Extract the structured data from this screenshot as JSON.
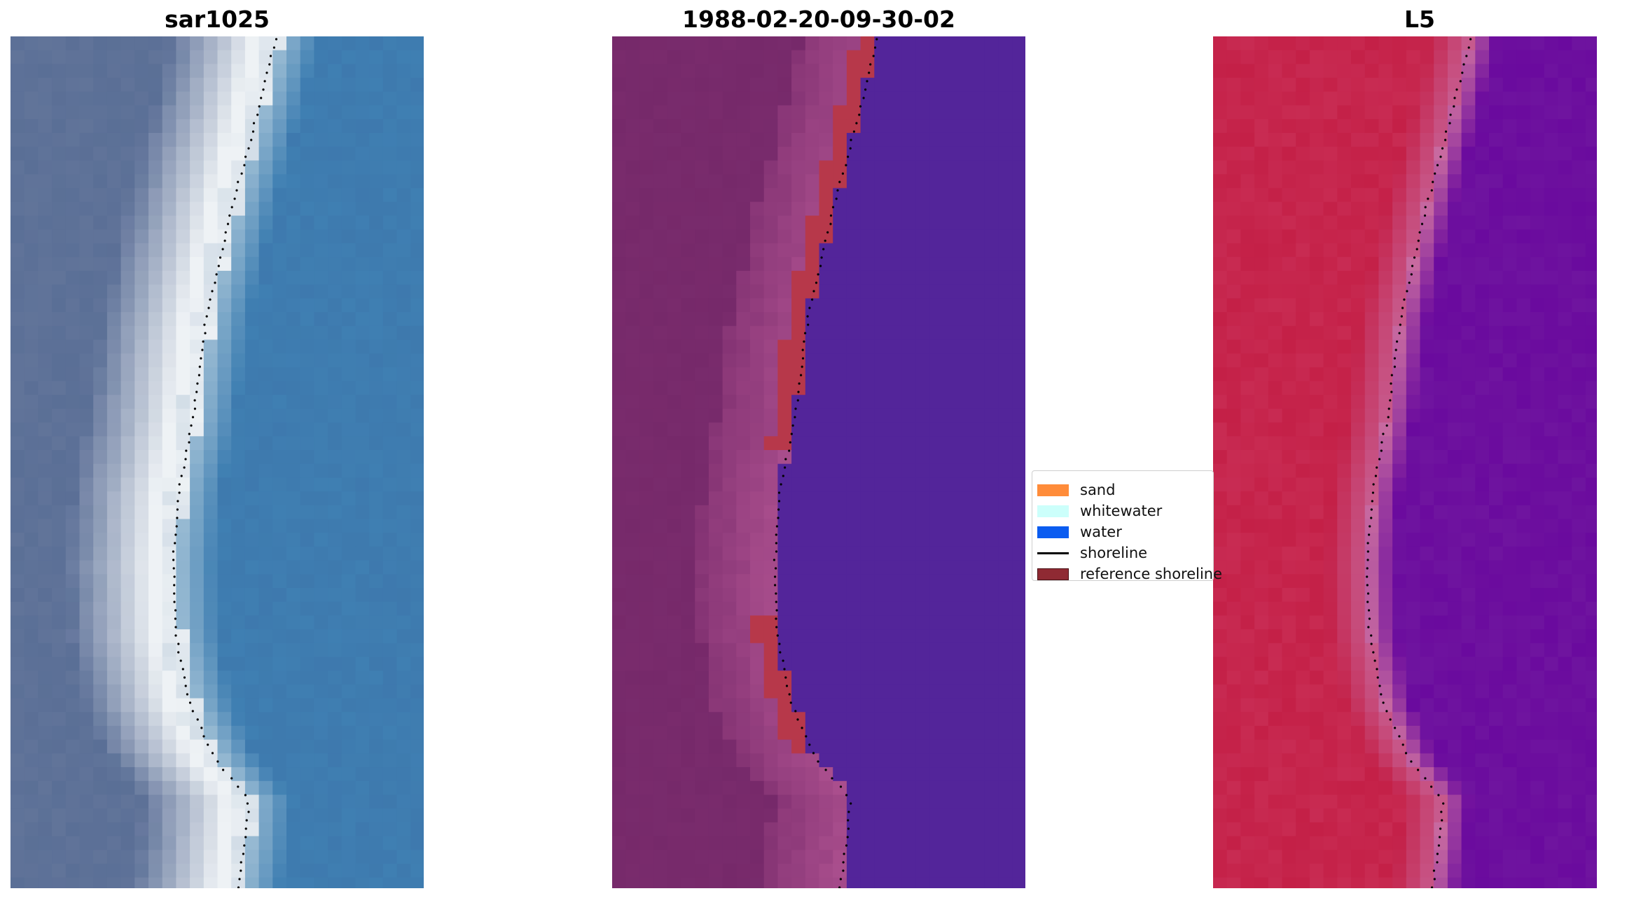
{
  "panels": [
    {
      "title": "sar1025"
    },
    {
      "title": "1988-02-20-09-30-02"
    },
    {
      "title": "L5"
    }
  ],
  "legend": {
    "items": [
      {
        "label": "sand",
        "color": "#ff8c3a",
        "kind": "patch"
      },
      {
        "label": "whitewater",
        "color": "#ccfffb",
        "kind": "patch"
      },
      {
        "label": "water",
        "color": "#0a5cf0",
        "kind": "patch"
      },
      {
        "label": "shoreline",
        "color": "#000000",
        "kind": "line"
      },
      {
        "label": "reference shoreline",
        "color": "#8f2a33",
        "kind": "patch"
      }
    ]
  },
  "colors": {
    "rgb_land": "#5a6f96",
    "rgb_water": "#3f7fb2",
    "rgb_white": "#eef2f5",
    "class_land": "#76296a",
    "class_water": "#53259a",
    "class_sand": "#b7384a",
    "class_transition": "#ab4f8e",
    "index_land": "#c42047",
    "index_water": "#6a0a9e",
    "index_transition": "#c86aa0"
  }
}
